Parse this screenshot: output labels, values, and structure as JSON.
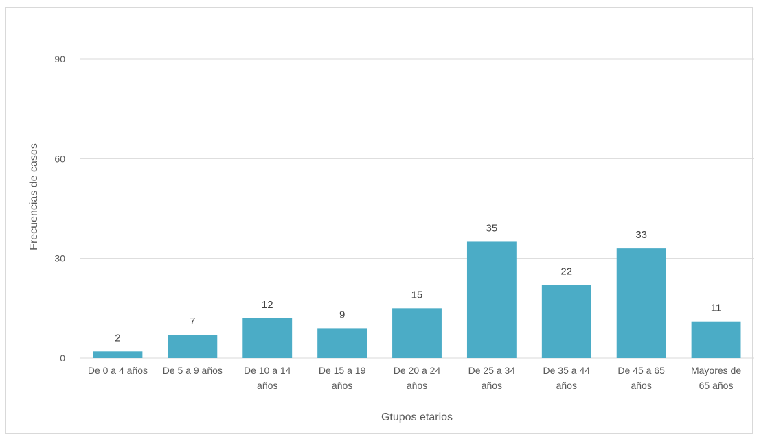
{
  "chart_data": {
    "type": "bar",
    "categories": [
      [
        "De 0 a 4 años"
      ],
      [
        "De 5 a 9 años"
      ],
      [
        "De 10 a 14",
        "años"
      ],
      [
        "De 15 a 19",
        "años"
      ],
      [
        "De 20 a 24",
        "años"
      ],
      [
        "De 25 a 34",
        "años"
      ],
      [
        "De 35 a 44",
        "años"
      ],
      [
        "De 45 a 65",
        "años"
      ],
      [
        "Mayores de",
        "65 años"
      ]
    ],
    "values": [
      2,
      7,
      12,
      9,
      15,
      35,
      22,
      33,
      11
    ],
    "title": "",
    "xlabel": "Gtupos etarios",
    "ylabel": "Frecuencias de casos",
    "ylim": [
      0,
      90
    ],
    "yticks": [
      0,
      30,
      60,
      90
    ],
    "grid": true,
    "legend": "none",
    "bar_color": "#4BACC6",
    "gridline_color": "#d9d9d9"
  }
}
